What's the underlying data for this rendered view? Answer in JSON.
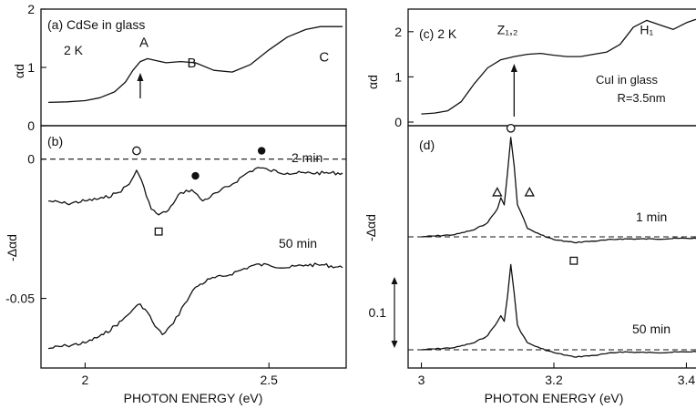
{
  "chart_data": [
    {
      "panel": "a",
      "type": "line",
      "label": "(a) CdSe in glass",
      "temperature": "2 K",
      "ylabel": "αd",
      "xlim": [
        1.88,
        2.71
      ],
      "ylim": [
        0,
        2
      ],
      "yticks": [
        0,
        1,
        2
      ],
      "arrow_x": 2.15,
      "annotations": [
        {
          "text": "A",
          "x": 2.16,
          "y": 1.35
        },
        {
          "text": "B",
          "x": 2.29,
          "y": 1.0
        },
        {
          "text": "C",
          "x": 2.65,
          "y": 1.1
        }
      ],
      "series": [
        {
          "x": [
            1.9,
            1.95,
            2.0,
            2.04,
            2.08,
            2.11,
            2.13,
            2.15,
            2.17,
            2.19,
            2.22,
            2.26,
            2.3,
            2.35,
            2.4,
            2.45,
            2.5,
            2.55,
            2.6,
            2.64,
            2.68,
            2.7
          ],
          "y": [
            0.4,
            0.41,
            0.43,
            0.48,
            0.58,
            0.75,
            0.95,
            1.1,
            1.15,
            1.12,
            1.08,
            1.1,
            1.08,
            0.95,
            0.92,
            1.05,
            1.3,
            1.52,
            1.65,
            1.7,
            1.7,
            1.7
          ]
        }
      ]
    },
    {
      "panel": "b",
      "type": "line",
      "label": "(b)",
      "ylabel": "-Δαd",
      "xlabel": "PHOTON ENERGY (eV)",
      "xlim": [
        1.88,
        2.71
      ],
      "ylim": [
        -0.075,
        0.012
      ],
      "yticks": [
        0,
        -0.05
      ],
      "ytick_labels": [
        "0",
        "-0.05"
      ],
      "xticks": [
        2,
        2.5
      ],
      "xtick_labels": [
        "2",
        "2.5"
      ],
      "markers": [
        {
          "shape": "open-circle",
          "x": 2.14,
          "y": 0.003
        },
        {
          "shape": "open-square",
          "x": 2.2,
          "y": -0.026
        },
        {
          "shape": "filled-circle",
          "x": 2.3,
          "y": -0.006
        },
        {
          "shape": "filled-circle",
          "x": 2.48,
          "y": 0.003
        }
      ],
      "series": [
        {
          "name": "2 min",
          "x": [
            1.9,
            1.95,
            2.0,
            2.05,
            2.09,
            2.12,
            2.14,
            2.16,
            2.18,
            2.2,
            2.22,
            2.24,
            2.26,
            2.29,
            2.32,
            2.36,
            2.4,
            2.44,
            2.47,
            2.5,
            2.55,
            2.6,
            2.65,
            2.7
          ],
          "y": [
            -0.015,
            -0.016,
            -0.015,
            -0.014,
            -0.012,
            -0.009,
            -0.004,
            -0.01,
            -0.018,
            -0.02,
            -0.019,
            -0.016,
            -0.012,
            -0.011,
            -0.015,
            -0.012,
            -0.009,
            -0.005,
            -0.003,
            -0.004,
            -0.005,
            -0.005,
            -0.005,
            -0.005
          ]
        },
        {
          "name": "50 min",
          "x": [
            1.9,
            1.95,
            2.0,
            2.05,
            2.1,
            2.13,
            2.15,
            2.17,
            2.19,
            2.21,
            2.24,
            2.27,
            2.3,
            2.34,
            2.38,
            2.42,
            2.46,
            2.5,
            2.55,
            2.6,
            2.65,
            2.7
          ],
          "y": [
            -0.068,
            -0.067,
            -0.066,
            -0.063,
            -0.058,
            -0.054,
            -0.052,
            -0.055,
            -0.06,
            -0.063,
            -0.059,
            -0.052,
            -0.046,
            -0.043,
            -0.042,
            -0.04,
            -0.038,
            -0.038,
            -0.039,
            -0.038,
            -0.038,
            -0.039
          ]
        }
      ]
    },
    {
      "panel": "c",
      "type": "line",
      "label": "(c) 2 K",
      "ylabel": "αd",
      "xlim": [
        2.98,
        3.42
      ],
      "ylim": [
        0,
        2.5
      ],
      "yticks": [
        0,
        1,
        2
      ],
      "arrow_x": 3.14,
      "annotations": [
        {
          "text": "Z₁,₂",
          "x": 3.13,
          "y": 1.95
        },
        {
          "text": "H₁",
          "x": 3.34,
          "y": 1.95
        }
      ],
      "legend": [
        "CuI in glass",
        "R=3.5nm"
      ],
      "series": [
        {
          "x": [
            3.0,
            3.02,
            3.04,
            3.06,
            3.08,
            3.1,
            3.12,
            3.14,
            3.16,
            3.18,
            3.2,
            3.22,
            3.24,
            3.26,
            3.28,
            3.3,
            3.32,
            3.34,
            3.36,
            3.38,
            3.4,
            3.42
          ],
          "y": [
            0.18,
            0.2,
            0.25,
            0.45,
            0.85,
            1.2,
            1.38,
            1.45,
            1.5,
            1.52,
            1.48,
            1.45,
            1.45,
            1.5,
            1.55,
            1.72,
            2.1,
            2.25,
            2.15,
            2.05,
            2.2,
            2.3
          ]
        }
      ]
    },
    {
      "panel": "d",
      "type": "line",
      "label": "(d)",
      "ylabel": "-Δαd",
      "xlabel": "PHOTON ENERGY (eV)",
      "xlim": [
        2.98,
        3.42
      ],
      "xticks": [
        3,
        3.2,
        3.4
      ],
      "xtick_labels": [
        "3",
        "3.2",
        "3.4"
      ],
      "scale_bar": {
        "label": "0.1",
        "value": 0.1
      },
      "markers": [
        {
          "shape": "open-circle",
          "x": 3.135
        },
        {
          "shape": "open-triangle",
          "x": 3.12
        },
        {
          "shape": "open-triangle",
          "x": 3.155
        },
        {
          "shape": "open-square",
          "x": 3.23
        }
      ],
      "series": [
        {
          "name": "1 min",
          "x": [
            3.0,
            3.05,
            3.08,
            3.1,
            3.115,
            3.12,
            3.125,
            3.13,
            3.135,
            3.14,
            3.145,
            3.15,
            3.16,
            3.18,
            3.2,
            3.23,
            3.26,
            3.3,
            3.35,
            3.4,
            3.42
          ],
          "y": [
            0.0,
            0.003,
            0.01,
            0.02,
            0.04,
            0.055,
            0.045,
            0.09,
            0.14,
            0.1,
            0.045,
            0.035,
            0.012,
            0.003,
            -0.004,
            -0.008,
            -0.006,
            -0.003,
            -0.003,
            -0.002,
            -0.002
          ]
        },
        {
          "name": "50 min",
          "x": [
            3.0,
            3.05,
            3.08,
            3.1,
            3.115,
            3.12,
            3.125,
            3.13,
            3.135,
            3.14,
            3.145,
            3.15,
            3.16,
            3.18,
            3.2,
            3.23,
            3.26,
            3.3,
            3.35,
            3.4,
            3.42
          ],
          "y": [
            0.0,
            0.003,
            0.01,
            0.02,
            0.04,
            0.048,
            0.04,
            0.075,
            0.12,
            0.08,
            0.035,
            0.025,
            0.01,
            0.002,
            -0.004,
            -0.01,
            -0.008,
            -0.003,
            -0.004,
            -0.003,
            -0.002
          ]
        }
      ]
    }
  ]
}
